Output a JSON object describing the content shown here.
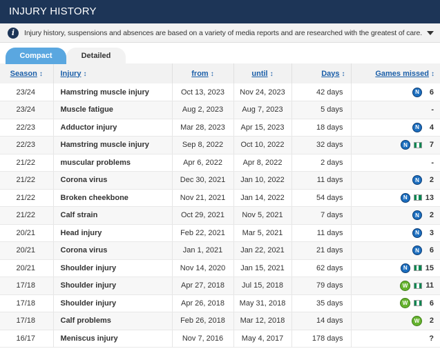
{
  "header": {
    "title": "INJURY HISTORY"
  },
  "notice": {
    "text": "Injury history, suspensions and absences are based on a variety of media reports and are researched with the greatest of care. If yo..."
  },
  "tabs": [
    {
      "label": "Compact",
      "active": true
    },
    {
      "label": "Detailed",
      "active": false
    }
  ],
  "columns": {
    "season": "Season",
    "injury": "Injury",
    "from": "from",
    "until": "until",
    "days": "Days",
    "games": "Games missed",
    "sort_icon": "↕"
  },
  "colors": {
    "header_bg": "#1d3557",
    "tab_active": "#5aa7e0",
    "link": "#1a5ea8",
    "napoli": "#1d6fbf",
    "wolfsburg": "#65b32e",
    "nigeria_green": "#008751"
  },
  "rows": [
    {
      "season": "23/24",
      "injury": "Hamstring muscle injury",
      "from": "Oct 13, 2023",
      "until": "Nov 24, 2023",
      "days": "42 days",
      "icons": [
        "napoli-icon"
      ],
      "games": "6"
    },
    {
      "season": "23/24",
      "injury": "Muscle fatigue",
      "from": "Aug 2, 2023",
      "until": "Aug 7, 2023",
      "days": "5 days",
      "icons": [],
      "games": "-"
    },
    {
      "season": "22/23",
      "injury": "Adductor injury",
      "from": "Mar 28, 2023",
      "until": "Apr 15, 2023",
      "days": "18 days",
      "icons": [
        "napoli-icon"
      ],
      "games": "4"
    },
    {
      "season": "22/23",
      "injury": "Hamstring muscle injury",
      "from": "Sep 8, 2022",
      "until": "Oct 10, 2022",
      "days": "32 days",
      "icons": [
        "napoli-icon",
        "nigeria-flag-icon"
      ],
      "games": "7"
    },
    {
      "season": "21/22",
      "injury": "muscular problems",
      "from": "Apr 6, 2022",
      "until": "Apr 8, 2022",
      "days": "2 days",
      "icons": [],
      "games": "-"
    },
    {
      "season": "21/22",
      "injury": "Corona virus",
      "from": "Dec 30, 2021",
      "until": "Jan 10, 2022",
      "days": "11 days",
      "icons": [
        "napoli-icon"
      ],
      "games": "2"
    },
    {
      "season": "21/22",
      "injury": "Broken cheekbone",
      "from": "Nov 21, 2021",
      "until": "Jan 14, 2022",
      "days": "54 days",
      "icons": [
        "napoli-icon",
        "nigeria-flag-icon"
      ],
      "games": "13"
    },
    {
      "season": "21/22",
      "injury": "Calf strain",
      "from": "Oct 29, 2021",
      "until": "Nov 5, 2021",
      "days": "7 days",
      "icons": [
        "napoli-icon"
      ],
      "games": "2"
    },
    {
      "season": "20/21",
      "injury": "Head injury",
      "from": "Feb 22, 2021",
      "until": "Mar 5, 2021",
      "days": "11 days",
      "icons": [
        "napoli-icon"
      ],
      "games": "3"
    },
    {
      "season": "20/21",
      "injury": "Corona virus",
      "from": "Jan 1, 2021",
      "until": "Jan 22, 2021",
      "days": "21 days",
      "icons": [
        "napoli-icon"
      ],
      "games": "6"
    },
    {
      "season": "20/21",
      "injury": "Shoulder injury",
      "from": "Nov 14, 2020",
      "until": "Jan 15, 2021",
      "days": "62 days",
      "icons": [
        "napoli-icon",
        "nigeria-flag-icon"
      ],
      "games": "15"
    },
    {
      "season": "17/18",
      "injury": "Shoulder injury",
      "from": "Apr 27, 2018",
      "until": "Jul 15, 2018",
      "days": "79 days",
      "icons": [
        "wolfsburg-icon",
        "nigeria-flag-icon"
      ],
      "games": "11"
    },
    {
      "season": "17/18",
      "injury": "Shoulder injury",
      "from": "Apr 26, 2018",
      "until": "May 31, 2018",
      "days": "35 days",
      "icons": [
        "wolfsburg-icon",
        "nigeria-flag-icon"
      ],
      "games": "6"
    },
    {
      "season": "17/18",
      "injury": "Calf problems",
      "from": "Feb 26, 2018",
      "until": "Mar 12, 2018",
      "days": "14 days",
      "icons": [
        "wolfsburg-icon"
      ],
      "games": "2"
    },
    {
      "season": "16/17",
      "injury": "Meniscus injury",
      "from": "Nov 7, 2016",
      "until": "May 4, 2017",
      "days": "178 days",
      "icons": [],
      "games": "?"
    }
  ]
}
